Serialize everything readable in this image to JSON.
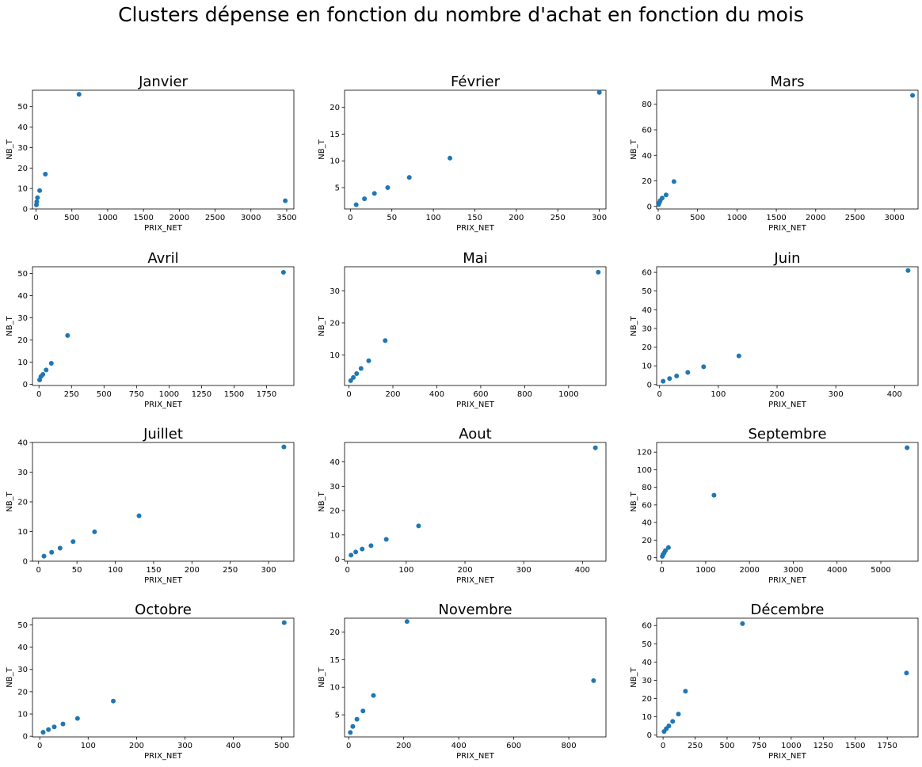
{
  "figure": {
    "title": "Clusters dépense en fonction du nombre d'achat en fonction du mois"
  },
  "chart_data": [
    {
      "type": "scatter",
      "title": "Janvier",
      "xlabel": "PRIX_NET",
      "ylabel": "NB_T",
      "xlim": [
        -50,
        3600
      ],
      "ylim": [
        0,
        58
      ],
      "xticks": [
        0,
        500,
        1000,
        1500,
        2000,
        2500,
        3000,
        3500
      ],
      "yticks": [
        0,
        10,
        20,
        30,
        40,
        50
      ],
      "points": [
        [
          5,
          2
        ],
        [
          10,
          3.5
        ],
        [
          20,
          5.5
        ],
        [
          50,
          9
        ],
        [
          130,
          17
        ],
        [
          600,
          56
        ],
        [
          3480,
          4
        ]
      ]
    },
    {
      "type": "scatter",
      "title": "Février",
      "xlabel": "PRIX_NET",
      "ylabel": "NB_T",
      "xlim": [
        -7,
        308
      ],
      "ylim": [
        1,
        23.2
      ],
      "xticks": [
        0,
        50,
        100,
        150,
        200,
        250,
        300
      ],
      "yticks": [
        5,
        10,
        15,
        20
      ],
      "points": [
        [
          7,
          1.8
        ],
        [
          17,
          2.9
        ],
        [
          29,
          3.9
        ],
        [
          45,
          5
        ],
        [
          71,
          6.9
        ],
        [
          120,
          10.5
        ],
        [
          300,
          22.8
        ]
      ]
    },
    {
      "type": "scatter",
      "title": "Mars",
      "xlabel": "PRIX_NET",
      "ylabel": "NB_T",
      "xlim": [
        -20,
        3300
      ],
      "ylim": [
        -2,
        91
      ],
      "xticks": [
        0,
        500,
        1000,
        1500,
        2000,
        2500,
        3000
      ],
      "yticks": [
        0,
        20,
        40,
        60,
        80
      ],
      "points": [
        [
          5,
          1.5
        ],
        [
          15,
          3
        ],
        [
          25,
          4.5
        ],
        [
          50,
          6.5
        ],
        [
          100,
          9
        ],
        [
          200,
          19.5
        ],
        [
          3230,
          87
        ]
      ]
    },
    {
      "type": "scatter",
      "title": "Avril",
      "xlabel": "PRIX_NET",
      "ylabel": "NB_T",
      "xlim": [
        -50,
        1960
      ],
      "ylim": [
        -0.5,
        53
      ],
      "xticks": [
        0,
        250,
        500,
        750,
        1000,
        1250,
        1500,
        1750
      ],
      "yticks": [
        0,
        10,
        20,
        30,
        40,
        50
      ],
      "points": [
        [
          5,
          2
        ],
        [
          15,
          3.5
        ],
        [
          30,
          4.5
        ],
        [
          55,
          6.5
        ],
        [
          95,
          9.5
        ],
        [
          220,
          22
        ],
        [
          1880,
          50.5
        ]
      ]
    },
    {
      "type": "scatter",
      "title": "Mai",
      "xlabel": "PRIX_NET",
      "ylabel": "NB_T",
      "xlim": [
        -20,
        1170
      ],
      "ylim": [
        0.5,
        37.5
      ],
      "xticks": [
        0,
        200,
        400,
        600,
        800,
        1000
      ],
      "yticks": [
        10,
        20,
        30
      ],
      "points": [
        [
          8,
          2
        ],
        [
          20,
          3
        ],
        [
          35,
          4.2
        ],
        [
          55,
          5.8
        ],
        [
          90,
          8.2
        ],
        [
          165,
          14.5
        ],
        [
          1135,
          35.8
        ]
      ]
    },
    {
      "type": "scatter",
      "title": "Juin",
      "xlabel": "PRIX_NET",
      "ylabel": "NB_T",
      "xlim": [
        -5,
        440
      ],
      "ylim": [
        -0.5,
        63
      ],
      "xticks": [
        0,
        100,
        200,
        300,
        400
      ],
      "yticks": [
        0,
        10,
        20,
        30,
        40,
        50,
        60
      ],
      "points": [
        [
          6,
          1.8
        ],
        [
          17,
          3.2
        ],
        [
          29,
          4.6
        ],
        [
          48,
          6.5
        ],
        [
          75,
          9.5
        ],
        [
          135,
          15.3
        ],
        [
          423,
          61
        ]
      ]
    },
    {
      "type": "scatter",
      "title": "Juillet",
      "xlabel": "PRIX_NET",
      "ylabel": "NB_T",
      "xlim": [
        -8,
        333
      ],
      "ylim": [
        0,
        40
      ],
      "xticks": [
        0,
        50,
        100,
        150,
        200,
        250,
        300
      ],
      "yticks": [
        0,
        10,
        20,
        30,
        40
      ],
      "points": [
        [
          7,
          1.7
        ],
        [
          17,
          3
        ],
        [
          28,
          4.4
        ],
        [
          45,
          6.6
        ],
        [
          73,
          9.9
        ],
        [
          131,
          15.3
        ],
        [
          320,
          38.5
        ]
      ]
    },
    {
      "type": "scatter",
      "title": "Aout",
      "xlabel": "PRIX_NET",
      "ylabel": "NB_T",
      "xlim": [
        -5,
        440
      ],
      "ylim": [
        -0.8,
        48
      ],
      "xticks": [
        0,
        100,
        200,
        300,
        400
      ],
      "yticks": [
        0,
        10,
        20,
        30,
        40
      ],
      "points": [
        [
          6,
          1.7
        ],
        [
          14,
          3
        ],
        [
          25,
          4.2
        ],
        [
          40,
          5.6
        ],
        [
          66,
          8.2
        ],
        [
          121,
          13.7
        ],
        [
          422,
          45.8
        ]
      ]
    },
    {
      "type": "scatter",
      "title": "Septembre",
      "xlabel": "PRIX_NET",
      "ylabel": "NB_T",
      "xlim": [
        -120,
        5850
      ],
      "ylim": [
        -4,
        131
      ],
      "xticks": [
        0,
        1000,
        2000,
        3000,
        4000,
        5000
      ],
      "yticks": [
        0,
        20,
        40,
        60,
        80,
        100,
        120
      ],
      "points": [
        [
          10,
          1.5
        ],
        [
          25,
          3.5
        ],
        [
          50,
          5.5
        ],
        [
          80,
          8
        ],
        [
          150,
          11.5
        ],
        [
          1190,
          71
        ],
        [
          5600,
          125
        ]
      ]
    },
    {
      "type": "scatter",
      "title": "Octobre",
      "xlabel": "PRIX_NET",
      "ylabel": "NB_T",
      "xlim": [
        -15,
        525
      ],
      "ylim": [
        -0.3,
        53
      ],
      "xticks": [
        0,
        100,
        200,
        300,
        400,
        500
      ],
      "yticks": [
        0,
        10,
        20,
        30,
        40,
        50
      ],
      "points": [
        [
          7,
          1.8
        ],
        [
          18,
          3
        ],
        [
          30,
          4.2
        ],
        [
          48,
          5.5
        ],
        [
          78,
          8
        ],
        [
          152,
          15.8
        ],
        [
          505,
          51
        ]
      ]
    },
    {
      "type": "scatter",
      "title": "Novembre",
      "xlabel": "PRIX_NET",
      "ylabel": "NB_T",
      "xlim": [
        -15,
        935
      ],
      "ylim": [
        1,
        22.5
      ],
      "xticks": [
        0,
        200,
        400,
        600,
        800
      ],
      "yticks": [
        5,
        10,
        15,
        20
      ],
      "points": [
        [
          6,
          1.8
        ],
        [
          15,
          2.9
        ],
        [
          30,
          4.2
        ],
        [
          52,
          5.7
        ],
        [
          90,
          8.5
        ],
        [
          212,
          21.9
        ],
        [
          890,
          11.2
        ]
      ]
    },
    {
      "type": "scatter",
      "title": "Décembre",
      "xlabel": "PRIX_NET",
      "ylabel": "NB_T",
      "xlim": [
        -50,
        1990
      ],
      "ylim": [
        -1,
        64
      ],
      "xticks": [
        0,
        250,
        500,
        750,
        1000,
        1250,
        1500,
        1750
      ],
      "yticks": [
        0,
        10,
        20,
        30,
        40,
        50,
        60
      ],
      "points": [
        [
          8,
          2
        ],
        [
          25,
          3.5
        ],
        [
          45,
          5
        ],
        [
          75,
          7.5
        ],
        [
          120,
          11.5
        ],
        [
          175,
          24
        ],
        [
          620,
          61
        ],
        [
          1900,
          34
        ]
      ]
    }
  ]
}
